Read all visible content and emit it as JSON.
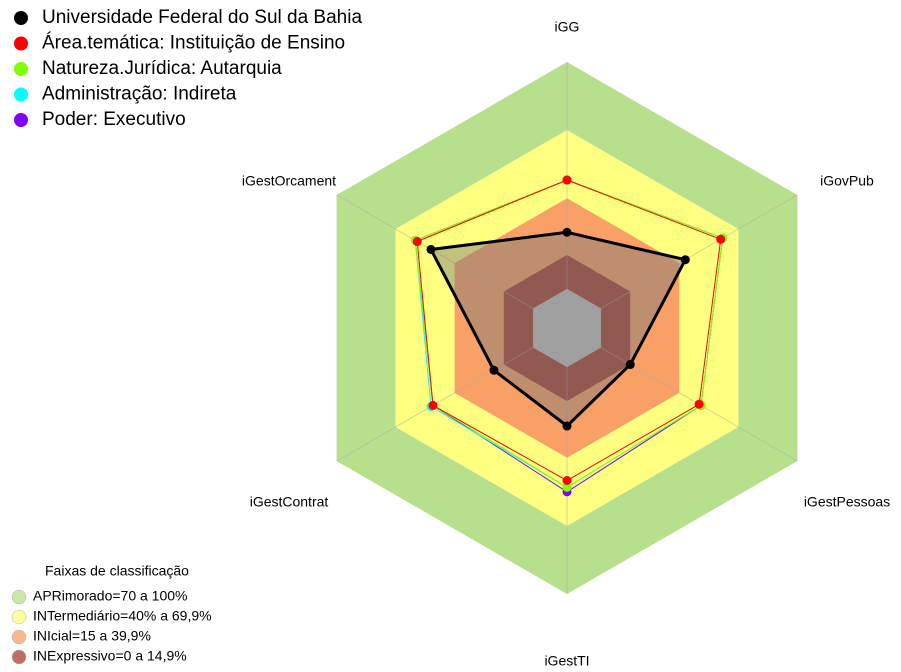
{
  "chart_data": {
    "type": "radar",
    "categories": [
      "iGG",
      "iGovPub",
      "iGestPessoas",
      "iGestTI",
      "iGestContrat",
      "iGestOrcament"
    ],
    "ylim": [
      0,
      100
    ],
    "series": [
      {
        "name": "Universidade Federal do Sul da Bahia",
        "color": "#000000",
        "values": [
          25,
          43,
          15,
          26,
          20,
          52
        ]
      },
      {
        "name": "Área.temática: Instituição de Ensino",
        "color": "#ff0000",
        "values": [
          48,
          61,
          50,
          50,
          51,
          59
        ]
      },
      {
        "name": "Natureza.Jurídica: Autarquia",
        "color": "#80ff00",
        "values": [
          48,
          62,
          51,
          53,
          51,
          60
        ]
      },
      {
        "name": "Administração: Indireta",
        "color": "#00ffff",
        "values": [
          48,
          62,
          51,
          53,
          52,
          60
        ]
      },
      {
        "name": "Poder: Executivo",
        "color": "#8000ff",
        "values": [
          48,
          62,
          51,
          55,
          51,
          60
        ]
      }
    ],
    "bands_title": "Faixas de classificação",
    "bands": [
      {
        "label": "APRimorado=70 a 100%",
        "color": "#b7e08c",
        "from": 70,
        "to": 100
      },
      {
        "label": "INTermediário=40% a 69,9%",
        "color": "#ffff80",
        "from": 40,
        "to": 70
      },
      {
        "label": "INIcial=15 a 39,9%",
        "color": "#f9a066",
        "from": 15,
        "to": 40
      },
      {
        "label": "INExpressivo=0 a 14,9%",
        "color": "#a84030",
        "from": 0,
        "to": 15
      }
    ]
  }
}
